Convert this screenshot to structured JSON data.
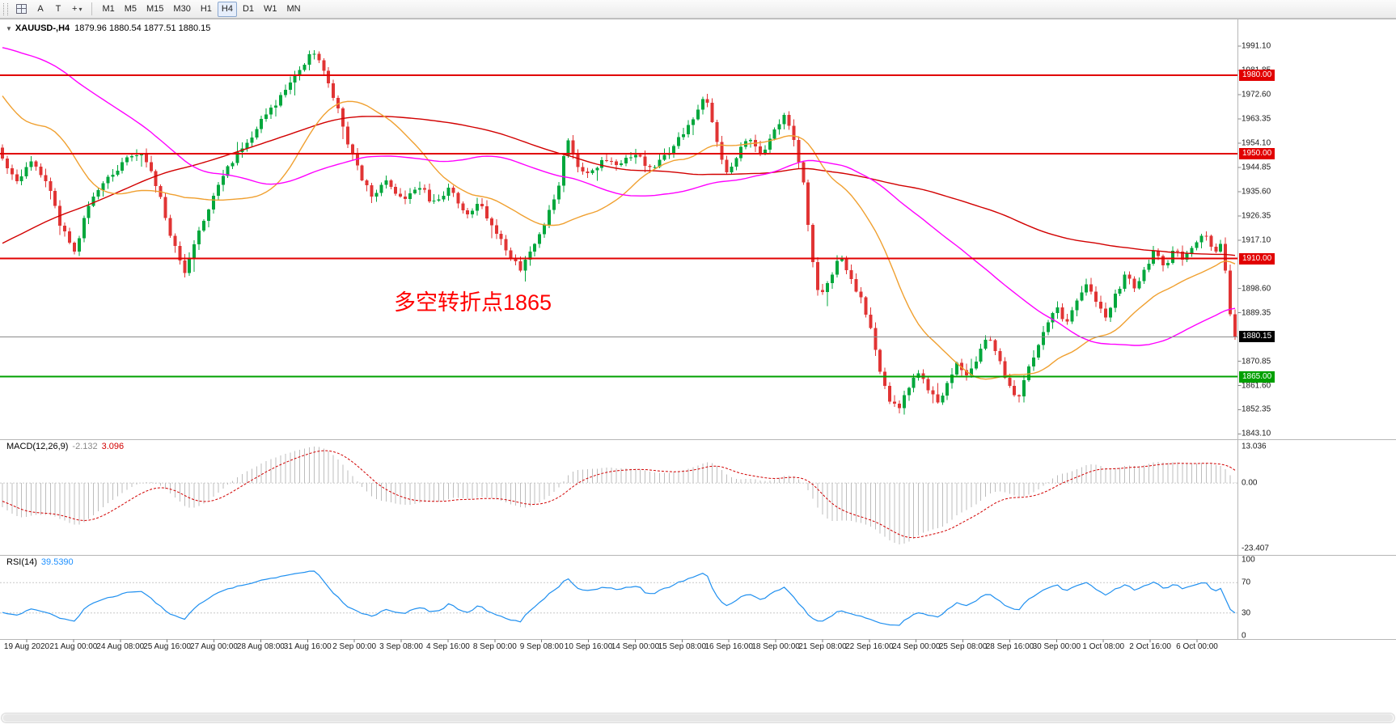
{
  "toolbar": {
    "tools": [
      {
        "name": "chart-grid-icon"
      },
      {
        "name": "font-tool",
        "label": "A"
      },
      {
        "name": "text-tool",
        "label": "T"
      },
      {
        "name": "crosshair-tool",
        "label": "+",
        "caret": "▾"
      }
    ],
    "timeframes": [
      "M1",
      "M5",
      "M15",
      "M30",
      "H1",
      "H4",
      "D1",
      "W1",
      "MN"
    ],
    "active_timeframe": "H4"
  },
  "chart": {
    "collapse_arrow": "▼",
    "symbol_title": "XAUUSD-,H4",
    "quote_ohlc": "1879.96 1880.54 1877.51 1880.15",
    "annotation": {
      "text": "多空转折点1865",
      "color": "#ff0000"
    },
    "price_axis_ticks": [
      "1991.10",
      "1981.85",
      "1972.60",
      "1963.35",
      "1954.10",
      "1944.85",
      "1935.60",
      "1926.35",
      "1917.10",
      "1898.60",
      "1889.35",
      "1870.85",
      "1861.60",
      "1852.35",
      "1843.10"
    ],
    "levels": [
      {
        "price": 1980.0,
        "label": "1980.00",
        "color": "#e10000"
      },
      {
        "price": 1950.0,
        "label": "1950.00",
        "color": "#e10000"
      },
      {
        "price": 1910.0,
        "label": "1910.00",
        "color": "#e10000"
      },
      {
        "price": 1865.0,
        "label": "1865.00",
        "color": "#00a000"
      }
    ],
    "current_price": {
      "value": 1880.15,
      "label": "1880.15",
      "bg": "#000000"
    }
  },
  "macd": {
    "label": "MACD(12,26,9)",
    "value_main": "-2.132",
    "value_signal": "3.096",
    "axis": [
      "13.036",
      "0.00",
      "-23.407"
    ],
    "axis_values": [
      13.036,
      0,
      -23.407
    ]
  },
  "rsi": {
    "label": "RSI(14)",
    "value": "39.5390",
    "axis": [
      "100",
      "70",
      "30",
      "0"
    ],
    "levels": [
      70,
      30
    ]
  },
  "time_axis": {
    "labels": [
      "19 Aug 2020",
      "21 Aug 00:00",
      "24 Aug 08:00",
      "25 Aug 16:00",
      "27 Aug 00:00",
      "28 Aug 08:00",
      "31 Aug 16:00",
      "2 Sep 00:00",
      "3 Sep 08:00",
      "4 Sep 16:00",
      "8 Sep 00:00",
      "9 Sep 08:00",
      "10 Sep 16:00",
      "14 Sep 00:00",
      "15 Sep 08:00",
      "16 Sep 16:00",
      "18 Sep 00:00",
      "21 Sep 08:00",
      "22 Sep 16:00",
      "24 Sep 00:00",
      "25 Sep 08:00",
      "28 Sep 16:00",
      "30 Sep 00:00",
      "1 Oct 08:00",
      "2 Oct 16:00",
      "6 Oct 00:00"
    ]
  },
  "chart_data": {
    "type": "candlestick",
    "symbol": "XAUUSD",
    "timeframe": "H4",
    "ohlc_current": {
      "open": 1879.96,
      "high": 1880.54,
      "low": 1877.51,
      "close": 1880.15
    },
    "indicator_readings": {
      "macd": -2.132,
      "macd_signal": 3.096,
      "rsi": 39.539
    },
    "level_lines": [
      1980.0,
      1950.0,
      1910.0,
      1865.0
    ],
    "visible_bars": 258,
    "history_bars": 180,
    "seed": 11,
    "price_scale": {
      "max": 2001,
      "min": 1842
    },
    "price_path": [
      [
        -0.7,
        1795
      ],
      [
        -0.55,
        1808
      ],
      [
        -0.42,
        1845
      ],
      [
        -0.32,
        1900
      ],
      [
        -0.26,
        1955
      ],
      [
        -0.2,
        1985
      ],
      [
        -0.15,
        2012
      ],
      [
        -0.11,
        2032
      ],
      [
        -0.085,
        1996
      ],
      [
        -0.06,
        1946
      ],
      [
        -0.04,
        1976
      ],
      [
        -0.025,
        1996
      ],
      [
        -0.012,
        1962
      ],
      [
        0.0,
        1948
      ],
      [
        0.012,
        1940
      ],
      [
        0.025,
        1947
      ],
      [
        0.038,
        1936
      ],
      [
        0.048,
        1922
      ],
      [
        0.058,
        1913
      ],
      [
        0.07,
        1930
      ],
      [
        0.085,
        1940
      ],
      [
        0.1,
        1947
      ],
      [
        0.112,
        1952
      ],
      [
        0.125,
        1938
      ],
      [
        0.138,
        1916
      ],
      [
        0.148,
        1905
      ],
      [
        0.16,
        1922
      ],
      [
        0.175,
        1938
      ],
      [
        0.19,
        1950
      ],
      [
        0.205,
        1959
      ],
      [
        0.22,
        1968
      ],
      [
        0.232,
        1975
      ],
      [
        0.242,
        1983
      ],
      [
        0.252,
        1990
      ],
      [
        0.26,
        1982
      ],
      [
        0.27,
        1970
      ],
      [
        0.28,
        1955
      ],
      [
        0.29,
        1942
      ],
      [
        0.3,
        1933
      ],
      [
        0.312,
        1940
      ],
      [
        0.325,
        1931
      ],
      [
        0.338,
        1938
      ],
      [
        0.35,
        1931
      ],
      [
        0.362,
        1937
      ],
      [
        0.374,
        1927
      ],
      [
        0.386,
        1931
      ],
      [
        0.398,
        1923
      ],
      [
        0.408,
        1913
      ],
      [
        0.42,
        1906
      ],
      [
        0.432,
        1916
      ],
      [
        0.444,
        1928
      ],
      [
        0.452,
        1940
      ],
      [
        0.458,
        1956
      ],
      [
        0.466,
        1946
      ],
      [
        0.476,
        1942
      ],
      [
        0.488,
        1948
      ],
      [
        0.5,
        1945
      ],
      [
        0.512,
        1951
      ],
      [
        0.524,
        1944
      ],
      [
        0.536,
        1949
      ],
      [
        0.548,
        1955
      ],
      [
        0.56,
        1962
      ],
      [
        0.57,
        1972
      ],
      [
        0.578,
        1960
      ],
      [
        0.586,
        1941
      ],
      [
        0.596,
        1950
      ],
      [
        0.606,
        1956
      ],
      [
        0.616,
        1950
      ],
      [
        0.625,
        1958
      ],
      [
        0.635,
        1966
      ],
      [
        0.643,
        1955
      ],
      [
        0.65,
        1938
      ],
      [
        0.656,
        1912
      ],
      [
        0.663,
        1895
      ],
      [
        0.671,
        1902
      ],
      [
        0.679,
        1913
      ],
      [
        0.687,
        1904
      ],
      [
        0.695,
        1896
      ],
      [
        0.703,
        1886
      ],
      [
        0.711,
        1868
      ],
      [
        0.719,
        1856
      ],
      [
        0.727,
        1852
      ],
      [
        0.735,
        1861
      ],
      [
        0.743,
        1867
      ],
      [
        0.751,
        1860
      ],
      [
        0.759,
        1854
      ],
      [
        0.767,
        1863
      ],
      [
        0.775,
        1871
      ],
      [
        0.783,
        1865
      ],
      [
        0.791,
        1873
      ],
      [
        0.799,
        1880
      ],
      [
        0.807,
        1874
      ],
      [
        0.815,
        1862
      ],
      [
        0.823,
        1855
      ],
      [
        0.831,
        1866
      ],
      [
        0.839,
        1876
      ],
      [
        0.847,
        1884
      ],
      [
        0.855,
        1891
      ],
      [
        0.863,
        1885
      ],
      [
        0.871,
        1893
      ],
      [
        0.879,
        1901
      ],
      [
        0.887,
        1894
      ],
      [
        0.895,
        1888
      ],
      [
        0.903,
        1896
      ],
      [
        0.911,
        1904
      ],
      [
        0.919,
        1898
      ],
      [
        0.927,
        1906
      ],
      [
        0.935,
        1913
      ],
      [
        0.943,
        1907
      ],
      [
        0.951,
        1914
      ],
      [
        0.959,
        1909
      ],
      [
        0.967,
        1916
      ],
      [
        0.975,
        1919
      ],
      [
        0.983,
        1913
      ],
      [
        0.99,
        1917
      ],
      [
        0.995,
        1892
      ],
      [
        1.0,
        1880.15
      ]
    ],
    "ma": [
      {
        "period": 150,
        "color": "#d20000"
      },
      {
        "period": 24,
        "color": "#f0a030"
      },
      {
        "period": 60,
        "color": "#ff00ff"
      }
    ],
    "colors": {
      "up": "#00a73c",
      "down": "#e13434",
      "macd_hist": "#bdbdbd",
      "macd_signal": "#d20000",
      "rsi": "#2090f0",
      "current_price_line": "#8a8a8a"
    }
  }
}
